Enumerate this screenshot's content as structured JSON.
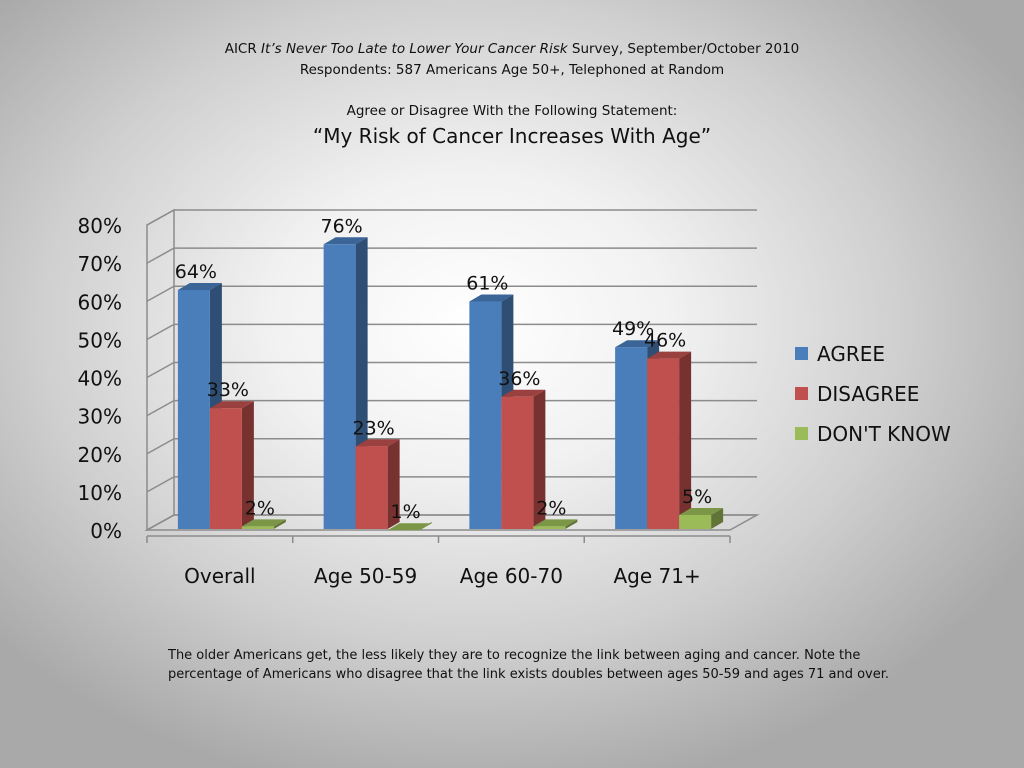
{
  "header": {
    "line1_prefix": "AICR ",
    "line1_italic": "It’s Never Too Late to Lower Your Cancer Risk",
    "line1_suffix": " Survey, September/October 2010",
    "line2": "Respondents: 587 Americans Age 50+, Telephoned at Random",
    "prompt": "Agree or Disagree With the Following Statement:",
    "statement": "“My Risk of Cancer Increases With Age”"
  },
  "chart_data": {
    "type": "bar",
    "style": "3d-clustered-column",
    "categories": [
      "Overall",
      "Age 50-59",
      "Age 60-70",
      "Age 71+"
    ],
    "series": [
      {
        "name": "AGREE",
        "values": [
          64,
          76,
          61,
          49
        ],
        "color": "#4a7ebb"
      },
      {
        "name": "DISAGREE",
        "values": [
          33,
          23,
          36,
          46
        ],
        "color": "#c0504d"
      },
      {
        "name": "DON'T KNOW",
        "values": [
          2,
          1,
          2,
          5
        ],
        "color": "#9bbb59"
      }
    ],
    "y_ticks": [
      "0%",
      "10%",
      "20%",
      "30%",
      "40%",
      "50%",
      "60%",
      "70%",
      "80%"
    ],
    "ylim": [
      0,
      80
    ],
    "unit": "%",
    "grid": true,
    "legend_position": "right"
  },
  "note": "The older Americans get, the less likely they are to recognize the link between aging and cancer.  Note the percentage of Americans who disagree that the link exists doubles between ages 50-59 and ages 71 and over."
}
